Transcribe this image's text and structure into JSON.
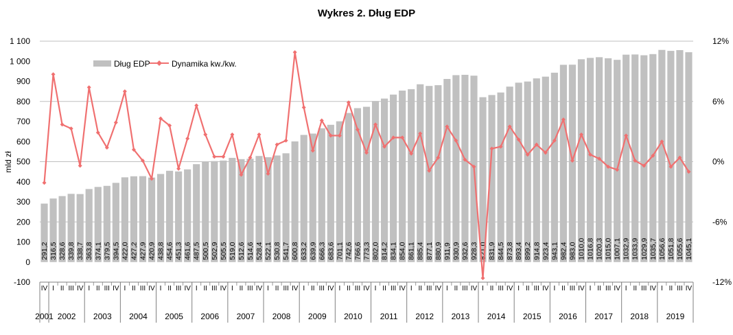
{
  "chart_data": {
    "type": "bar+line",
    "title": "Wykres 2. Dług EDP",
    "ylabel": "mld zł",
    "ylim": [
      -100,
      1100
    ],
    "y_ticks": [
      "-100",
      "0",
      "100",
      "200",
      "300",
      "400",
      "500",
      "600",
      "700",
      "800",
      "900",
      "1 000",
      "1 100"
    ],
    "y2lim": [
      -12,
      12
    ],
    "y2_ticks": [
      "-12%",
      "-6%",
      "0%",
      "6%",
      "12%"
    ],
    "legend": {
      "bar": "Dług EDP",
      "line": "Dynamika kw./kw."
    },
    "colors": {
      "bar": "#c0c0c0",
      "line": "#f07070",
      "grid": "#bfbfbf"
    },
    "quarter_labels": [
      "I",
      "II",
      "III",
      "IV"
    ],
    "years": [
      {
        "year": "2001",
        "quarters": 1
      },
      {
        "year": "2002",
        "quarters": 4
      },
      {
        "year": "2003",
        "quarters": 4
      },
      {
        "year": "2004",
        "quarters": 4
      },
      {
        "year": "2005",
        "quarters": 4
      },
      {
        "year": "2006",
        "quarters": 4
      },
      {
        "year": "2007",
        "quarters": 4
      },
      {
        "year": "2008",
        "quarters": 4
      },
      {
        "year": "2009",
        "quarters": 4
      },
      {
        "year": "2010",
        "quarters": 4
      },
      {
        "year": "2011",
        "quarters": 4
      },
      {
        "year": "2012",
        "quarters": 4
      },
      {
        "year": "2013",
        "quarters": 4
      },
      {
        "year": "2014",
        "quarters": 4
      },
      {
        "year": "2015",
        "quarters": 4
      },
      {
        "year": "2016",
        "quarters": 4
      },
      {
        "year": "2017",
        "quarters": 4
      },
      {
        "year": "2018",
        "quarters": 4
      },
      {
        "year": "2019",
        "quarters": 4
      }
    ],
    "debt_values": [
      291.2,
      316.5,
      328.6,
      339.8,
      338.7,
      363.8,
      374.1,
      379.5,
      394.5,
      422.0,
      427.2,
      427.9,
      420.9,
      438.8,
      454.6,
      451.3,
      461.6,
      487.5,
      500.5,
      502.9,
      505.5,
      519.0,
      512.6,
      514.6,
      528.4,
      522.1,
      530.8,
      541.7,
      600.8,
      633.2,
      639.9,
      666.3,
      683.6,
      701.1,
      742.6,
      766.6,
      773.3,
      802.0,
      814.2,
      834.1,
      854.0,
      861.1,
      885.4,
      877.1,
      880.9,
      911.9,
      930.9,
      932.6,
      928.3,
      821.0,
      831.9,
      844.5,
      873.8,
      893.4,
      899.2,
      914.8,
      923.4,
      943.1,
      982.4,
      983.0,
      1010.0,
      1016.8,
      1020.3,
      1015.0,
      1007.1,
      1032.9,
      1033.9,
      1029.9,
      1035.7,
      1056.6,
      1051.8,
      1055.6,
      1045.1
    ],
    "debt_labels": [
      "291,2",
      "316,5",
      "328,6",
      "339,8",
      "338,7",
      "363,8",
      "374,1",
      "379,5",
      "394,5",
      "422,0",
      "427,2",
      "427,9",
      "420,9",
      "438,8",
      "454,6",
      "451,3",
      "461,6",
      "487,5",
      "500,5",
      "502,9",
      "505,5",
      "519,0",
      "512,6",
      "514,6",
      "528,4",
      "522,1",
      "530,8",
      "541,7",
      "600,8",
      "633,2",
      "639,9",
      "666,3",
      "683,6",
      "701,1",
      "742,6",
      "766,6",
      "773,3",
      "802,0",
      "814,2",
      "834,1",
      "854,0",
      "861,1",
      "885,4",
      "877,1",
      "880,9",
      "911,9",
      "930,9",
      "932,6",
      "928,3",
      "821,0",
      "831,9",
      "844,5",
      "873,8",
      "893,4",
      "899,2",
      "914,8",
      "923,4",
      "943,1",
      "982,4",
      "983,0",
      "1010,0",
      "1016,8",
      "1020,3",
      "1015,0",
      "1007,1",
      "1032,9",
      "1033,9",
      "1029,9",
      "1035,7",
      "1056,6",
      "1051,8",
      "1055,6",
      "1045,1"
    ],
    "dynamics_pct": [
      -2.1,
      8.7,
      3.7,
      3.3,
      -0.4,
      7.4,
      2.9,
      1.4,
      3.9,
      7.0,
      1.2,
      0.1,
      -1.7,
      4.3,
      3.6,
      -0.7,
      2.3,
      5.6,
      2.7,
      0.5,
      0.5,
      2.7,
      -1.3,
      0.4,
      2.7,
      -1.2,
      1.7,
      2.1,
      10.9,
      5.4,
      1.1,
      4.1,
      2.6,
      2.6,
      5.9,
      3.2,
      0.9,
      3.7,
      1.5,
      2.4,
      2.4,
      0.8,
      2.8,
      -0.9,
      0.4,
      3.5,
      2.1,
      0.2,
      -0.5,
      -11.6,
      1.3,
      1.5,
      3.5,
      2.2,
      0.7,
      1.7,
      0.9,
      2.1,
      4.2,
      0.1,
      2.7,
      0.7,
      0.3,
      -0.5,
      -0.8,
      2.6,
      0.1,
      -0.4,
      0.6,
      2.0,
      -0.5,
      0.4,
      -1.0
    ]
  }
}
